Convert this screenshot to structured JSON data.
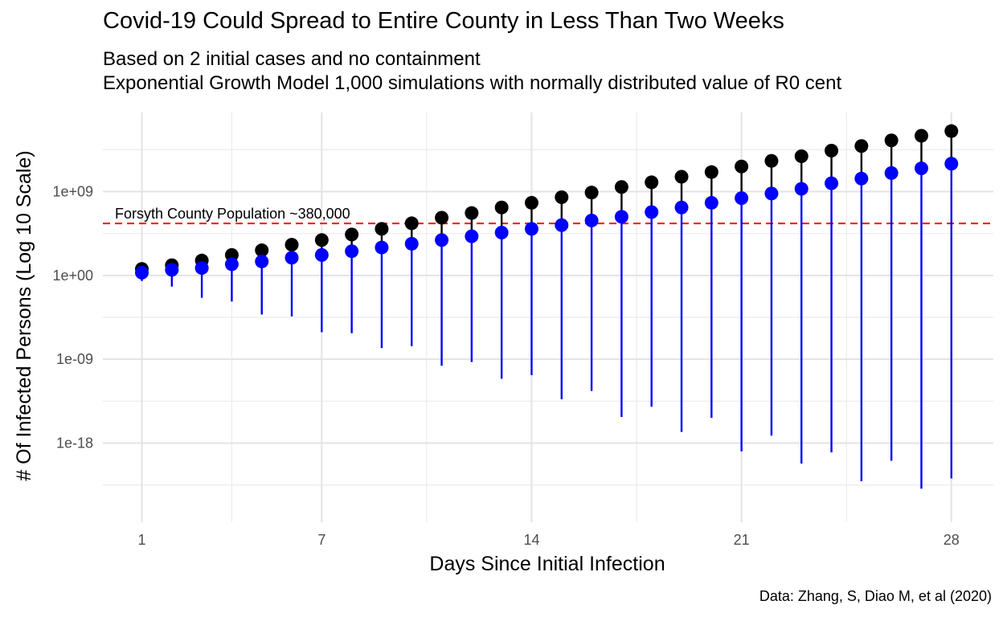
{
  "chart_data": {
    "type": "scatter",
    "title": "Covid-19 Could Spread to Entire County in Less Than Two Weeks",
    "subtitle_lines": [
      "Based on 2 initial cases and no containment",
      "Exponential Growth Model 1,000 simulations with normally distributed value of R0 cent"
    ],
    "xlabel": "Days Since Initial Infection",
    "ylabel": "# Of Infected Persons (Log 10 Scale)",
    "caption": "Data: Zhang, S, Diao M, et al (2020)",
    "x_ticks": [
      1,
      7,
      14,
      21,
      28
    ],
    "x_tick_labels": [
      "1",
      "7",
      "14",
      "21",
      "28"
    ],
    "xlim": [
      -0.3,
      29.4
    ],
    "y_scale": "log10",
    "y_ticks_log10": [
      9,
      0,
      -9,
      -18
    ],
    "y_tick_labels": [
      "1e+09",
      "1e+00",
      "1e-09",
      "1e-18"
    ],
    "ylim_log10": [
      -26.5,
      17.5
    ],
    "grid": true,
    "reference_line": {
      "label": "Forsyth County Population ~380,000",
      "value": 380000,
      "color": "#ff0000",
      "style": "dashed"
    },
    "series": [
      {
        "name": "upper",
        "color": "#000000",
        "x": [
          1,
          2,
          3,
          4,
          5,
          6,
          7,
          8,
          9,
          10,
          11,
          12,
          13,
          14,
          15,
          16,
          17,
          18,
          19,
          20,
          21,
          22,
          23,
          24,
          25,
          26,
          27,
          28
        ],
        "log10_values": [
          0.7,
          1.1,
          1.6,
          2.2,
          2.7,
          3.3,
          3.8,
          4.4,
          5.0,
          5.6,
          6.2,
          6.7,
          7.3,
          7.8,
          8.4,
          8.9,
          9.5,
          10.0,
          10.6,
          11.1,
          11.7,
          12.3,
          12.8,
          13.4,
          13.9,
          14.5,
          15.0,
          15.5
        ]
      },
      {
        "name": "center",
        "color": "#0000ff",
        "x": [
          1,
          2,
          3,
          4,
          5,
          6,
          7,
          8,
          9,
          10,
          11,
          12,
          13,
          14,
          15,
          16,
          17,
          18,
          19,
          20,
          21,
          22,
          23,
          24,
          25,
          26,
          27,
          28
        ],
        "log10_values": [
          0.3,
          0.6,
          0.8,
          1.2,
          1.5,
          1.9,
          2.2,
          2.6,
          3.0,
          3.4,
          3.8,
          4.2,
          4.6,
          5.0,
          5.4,
          5.9,
          6.3,
          6.8,
          7.3,
          7.8,
          8.3,
          8.8,
          9.3,
          9.9,
          10.4,
          11.0,
          11.5,
          12.0
        ]
      }
    ],
    "lower_log10": [
      -0.6,
      -1.2,
      -2.4,
      -2.8,
      -4.2,
      -4.4,
      -6.1,
      -6.2,
      -7.8,
      -7.6,
      -9.7,
      -9.3,
      -11.1,
      -10.7,
      -13.3,
      -12.4,
      -15.2,
      -14.1,
      -16.8,
      -15.3,
      -18.9,
      -17.2,
      -20.2,
      -19.0,
      -22.1,
      -19.9,
      -22.9,
      -21.8
    ]
  }
}
